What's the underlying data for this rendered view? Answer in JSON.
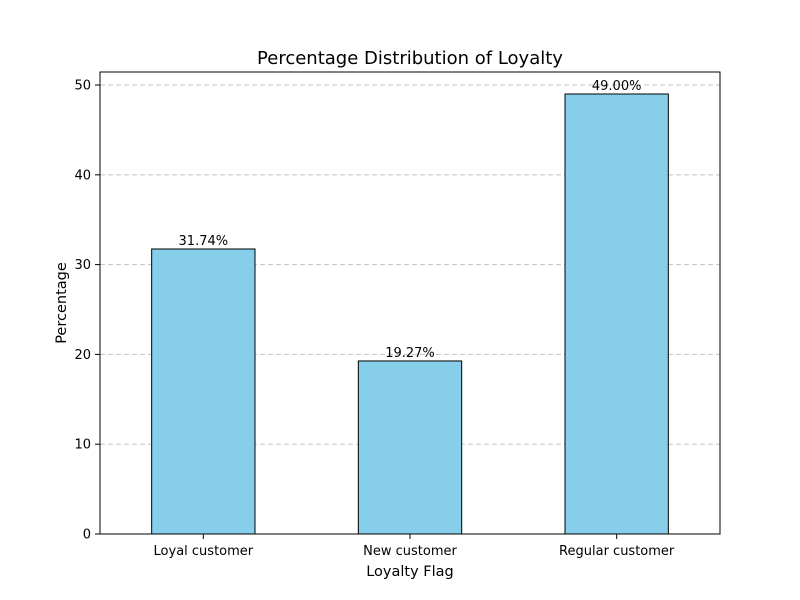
{
  "chart_data": {
    "type": "bar",
    "title": "Percentage Distribution of Loyalty",
    "xlabel": "Loyalty Flag",
    "ylabel": "Percentage",
    "categories": [
      "Loyal customer",
      "New customer",
      "Regular customer"
    ],
    "values": [
      31.74,
      19.27,
      49.0
    ],
    "data_labels": [
      "31.74%",
      "19.27%",
      "49.00%"
    ],
    "ylim": [
      0,
      51.45
    ],
    "yticks": [
      0,
      10,
      20,
      30,
      40,
      50
    ],
    "ytick_labels": [
      "0",
      "10",
      "20",
      "30",
      "40",
      "50"
    ],
    "grid": "y-dashed",
    "legend": "none",
    "colors": {
      "bar": "#87CEEB",
      "edge": "#000000",
      "grid": "#c4c4c4"
    }
  }
}
